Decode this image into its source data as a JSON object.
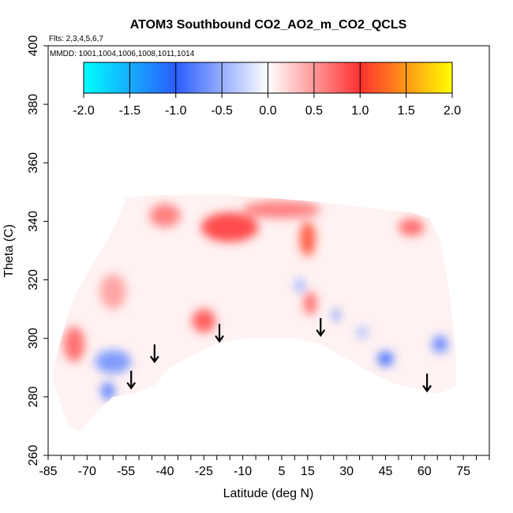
{
  "chart_data": {
    "type": "heatmap",
    "title": "ATOM3 Southbound CO2_AO2_m_CO2_QCLS",
    "flights_note": "Flts: 2,3,4,5,6,7",
    "dates_note": "MMDD: 1001,1004,1006,1008,1011,1014",
    "xlabel": "Latitude (deg N)",
    "ylabel": "Theta (C)",
    "xlim": [
      -85,
      85
    ],
    "ylim": [
      260,
      400
    ],
    "x_ticks": [
      -85,
      -70,
      -55,
      -40,
      -25,
      -10,
      5,
      15,
      30,
      45,
      60,
      75
    ],
    "y_ticks": [
      260,
      280,
      300,
      320,
      340,
      360,
      380,
      400
    ],
    "colorbar": {
      "range": [
        -2.0,
        2.0
      ],
      "tick_labels": [
        "-2.0",
        "-1.5",
        "-1.0",
        "-0.5",
        "0.0",
        "0.5",
        "1.0",
        "1.5",
        "2.0"
      ],
      "colors": [
        "#00ffff",
        "#2a5cff",
        "#ffffff",
        "#ff3030",
        "#ffff00"
      ]
    },
    "arrows": [
      {
        "lat": -53,
        "theta": 283
      },
      {
        "lat": -44,
        "theta": 292
      },
      {
        "lat": -19,
        "theta": 299
      },
      {
        "lat": 20,
        "theta": 301
      },
      {
        "lat": 61,
        "theta": 282
      }
    ],
    "field_top_theta": [
      [
        -83,
        290
      ],
      [
        -80,
        300
      ],
      [
        -77,
        309
      ],
      [
        -74,
        316
      ],
      [
        -70,
        322
      ],
      [
        -66,
        328
      ],
      [
        -62,
        334
      ],
      [
        -58,
        341
      ],
      [
        -55,
        348
      ],
      [
        -45,
        349
      ],
      [
        -30,
        349
      ],
      [
        -15,
        349
      ],
      [
        0,
        348
      ],
      [
        15,
        347
      ],
      [
        25,
        346
      ],
      [
        35,
        345
      ],
      [
        45,
        344
      ],
      [
        55,
        343
      ],
      [
        62,
        341
      ],
      [
        66,
        334
      ],
      [
        70,
        314
      ],
      [
        72,
        296
      ]
    ],
    "field_bottom_theta": [
      [
        -83,
        285
      ],
      [
        -80,
        277
      ],
      [
        -77,
        270
      ],
      [
        -73,
        268
      ],
      [
        -66,
        275
      ],
      [
        -60,
        280
      ],
      [
        -52,
        281
      ],
      [
        -44,
        284
      ],
      [
        -38,
        290
      ],
      [
        -30,
        294
      ],
      [
        -20,
        298
      ],
      [
        -10,
        300
      ],
      [
        0,
        300
      ],
      [
        10,
        300
      ],
      [
        20,
        298
      ],
      [
        30,
        293
      ],
      [
        40,
        288
      ],
      [
        50,
        284
      ],
      [
        60,
        282
      ],
      [
        66,
        281
      ],
      [
        70,
        283
      ],
      [
        72,
        284
      ]
    ],
    "anomalies": [
      {
        "lat": -15,
        "theta": 338,
        "value": 1.0,
        "w": 22,
        "h": 10
      },
      {
        "lat": 15,
        "theta": 334,
        "value": 1.1,
        "w": 6,
        "h": 12
      },
      {
        "lat": 5,
        "theta": 344,
        "value": 0.7,
        "w": 30,
        "h": 6
      },
      {
        "lat": -40,
        "theta": 342,
        "value": 0.7,
        "w": 12,
        "h": 8
      },
      {
        "lat": 55,
        "theta": 338,
        "value": 0.8,
        "w": 10,
        "h": 6
      },
      {
        "lat": -75,
        "theta": 298,
        "value": 0.8,
        "w": 8,
        "h": 12
      },
      {
        "lat": -25,
        "theta": 306,
        "value": 0.9,
        "w": 9,
        "h": 8
      },
      {
        "lat": 16,
        "theta": 312,
        "value": 0.8,
        "w": 5,
        "h": 8
      },
      {
        "lat": -60,
        "theta": 316,
        "value": 0.5,
        "w": 10,
        "h": 12
      },
      {
        "lat": -60,
        "theta": 292,
        "value": -0.7,
        "w": 14,
        "h": 8
      },
      {
        "lat": -62,
        "theta": 282,
        "value": -0.9,
        "w": 5,
        "h": 6
      },
      {
        "lat": 45,
        "theta": 293,
        "value": -1.0,
        "w": 6,
        "h": 5
      },
      {
        "lat": 66,
        "theta": 298,
        "value": -0.8,
        "w": 6,
        "h": 6
      },
      {
        "lat": 26,
        "theta": 308,
        "value": -1.0,
        "w": 2,
        "h": 4
      },
      {
        "lat": 12,
        "theta": 318,
        "value": -0.5,
        "w": 4,
        "h": 5
      },
      {
        "lat": 36,
        "theta": 302,
        "value": -0.4,
        "w": 5,
        "h": 4
      }
    ]
  }
}
